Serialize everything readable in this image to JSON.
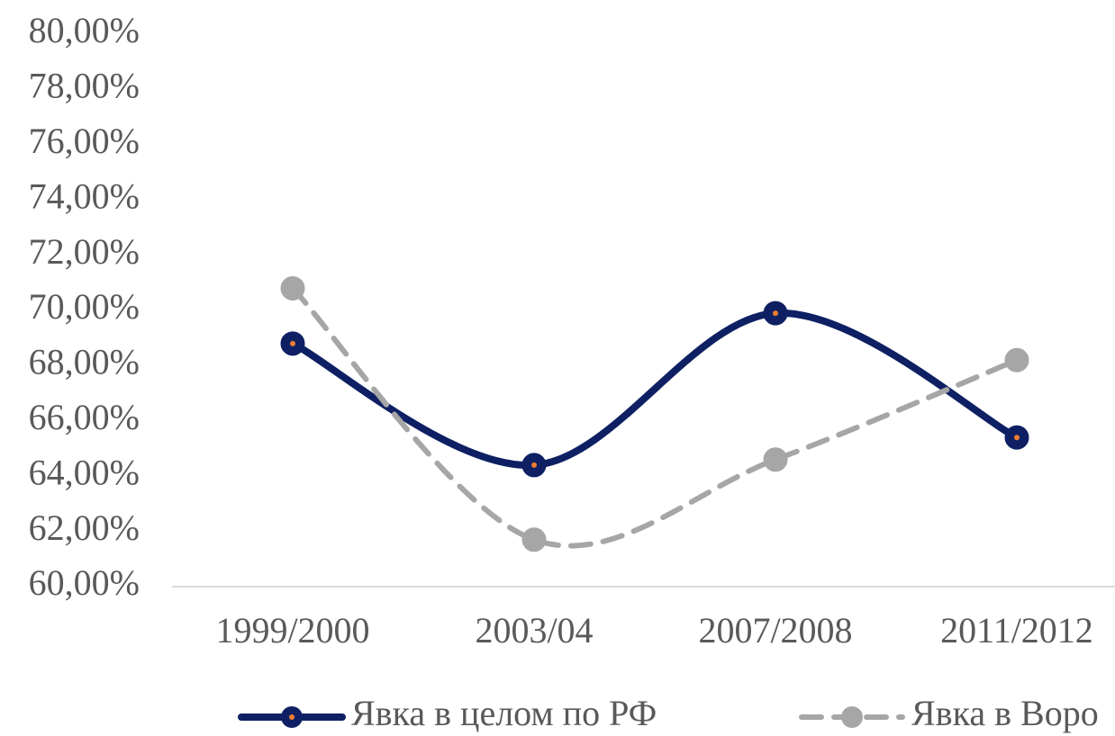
{
  "chart_data": {
    "type": "line",
    "categories": [
      "1999/2000",
      "2003/04",
      "2007/2008",
      "2011/2012"
    ],
    "series": [
      {
        "name": "Явка в целом по РФ",
        "color": "#0e2063",
        "values": [
          68.8,
          64.4,
          69.9,
          65.4
        ]
      },
      {
        "name": "Явка в Воро",
        "color": "#a6a6a6",
        "values": [
          70.8,
          61.7,
          64.6,
          68.2
        ]
      }
    ],
    "ylim": [
      60,
      80
    ],
    "yticks": [
      {
        "value": 60,
        "label": "60,00%"
      },
      {
        "value": 62,
        "label": "62,00%"
      },
      {
        "value": 64,
        "label": "64,00%"
      },
      {
        "value": 66,
        "label": "66,00%"
      },
      {
        "value": 68,
        "label": "68,00%"
      },
      {
        "value": 70,
        "label": "70,00%"
      },
      {
        "value": 72,
        "label": "72,00%"
      },
      {
        "value": 74,
        "label": "74,00%"
      },
      {
        "value": 76,
        "label": "76,00%"
      },
      {
        "value": 78,
        "label": "78,00%"
      },
      {
        "value": 80,
        "label": "80,00%"
      }
    ],
    "legend": "bottom"
  }
}
